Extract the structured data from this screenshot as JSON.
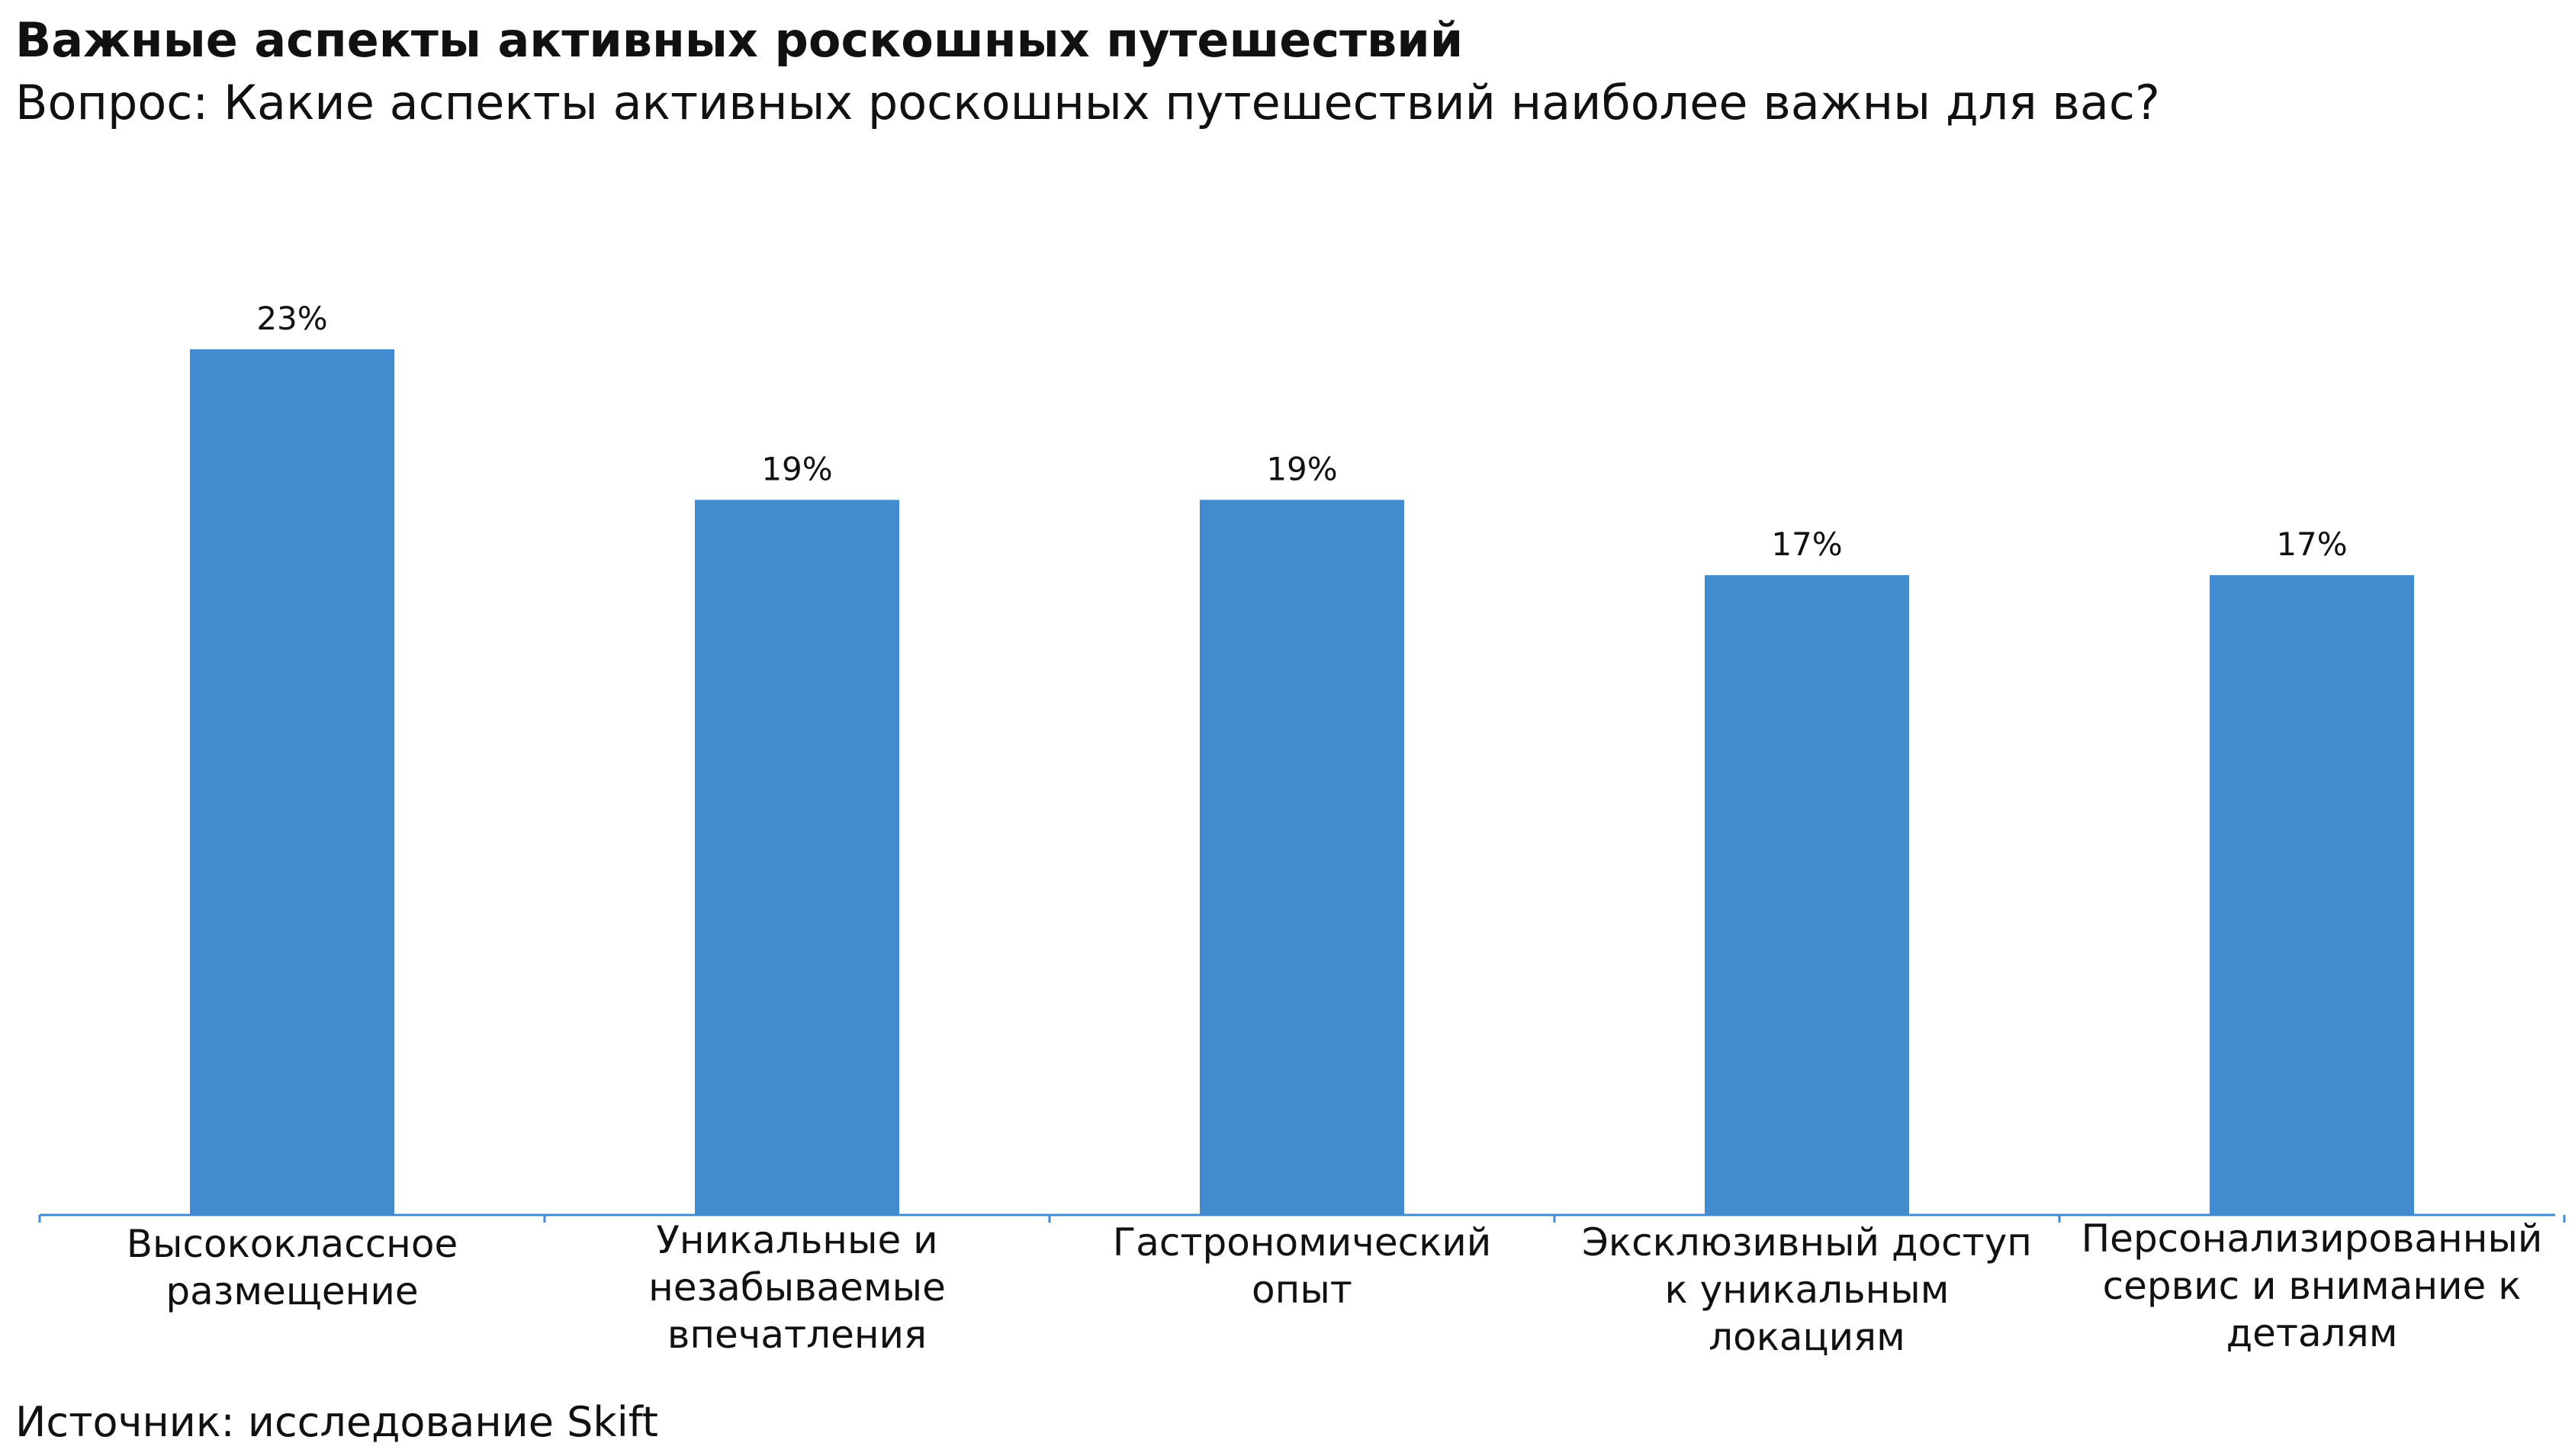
{
  "header": {
    "title": "Важные аспекты активных роскошных путешествий",
    "subtitle": "Вопрос: Какие аспекты активных роскошных путешествий наиболее важны для вас?"
  },
  "footer": {
    "source": "Источник: исследование Skift"
  },
  "colors": {
    "bar": "#428bcf",
    "axis": "#428bcf"
  },
  "chart_data": {
    "type": "bar",
    "categories": [
      "Высококлассное размещение",
      "Уникальные и незабываемые впечатления",
      "Гастрономический опыт",
      "Эксклюзивный доступ к уникальным локациям",
      "Персонализированный сервис и внимание к деталям"
    ],
    "values": [
      23,
      19,
      19,
      17,
      17
    ],
    "data_labels": [
      "23%",
      "19%",
      "19%",
      "17%",
      "17%"
    ],
    "title": "Важные аспекты активных роскошных путешествий",
    "xlabel": "",
    "ylabel": "",
    "ylim": [
      0,
      23
    ],
    "grid": false,
    "legend": "none"
  }
}
